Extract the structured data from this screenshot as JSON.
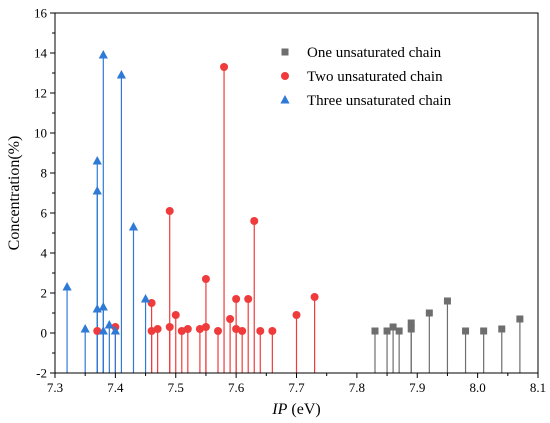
{
  "chart_data": {
    "type": "scatter",
    "style": "stem",
    "title": "",
    "xlabel_italic": "IP",
    "xlabel_unit": " (eV)",
    "ylabel": "Concentration(%)",
    "xlim": [
      7.3,
      8.1
    ],
    "ylim": [
      -2,
      16
    ],
    "baseline": -2,
    "xticks": [
      7.3,
      7.4,
      7.5,
      7.6,
      7.7,
      7.8,
      7.9,
      8.0,
      8.1
    ],
    "yticks": [
      -2,
      0,
      2,
      4,
      6,
      8,
      10,
      12,
      14,
      16
    ],
    "grid": false,
    "legend_position": "top-right",
    "series": [
      {
        "name": "One unsaturated chain",
        "marker": "square",
        "color": "#6e6e6e",
        "points": [
          {
            "x": 7.83,
            "y": 0.1
          },
          {
            "x": 7.85,
            "y": 0.1
          },
          {
            "x": 7.86,
            "y": 0.3
          },
          {
            "x": 7.87,
            "y": 0.1
          },
          {
            "x": 7.89,
            "y": 0.2
          },
          {
            "x": 7.89,
            "y": 0.5
          },
          {
            "x": 7.92,
            "y": 1.0
          },
          {
            "x": 7.95,
            "y": 1.6
          },
          {
            "x": 7.98,
            "y": 0.1
          },
          {
            "x": 8.01,
            "y": 0.1
          },
          {
            "x": 8.04,
            "y": 0.2
          },
          {
            "x": 8.07,
            "y": 0.7
          }
        ]
      },
      {
        "name": "Two unsaturated chain",
        "marker": "circle",
        "color": "#ef3b3b",
        "points": [
          {
            "x": 7.37,
            "y": 0.1
          },
          {
            "x": 7.4,
            "y": 0.3
          },
          {
            "x": 7.46,
            "y": 1.5
          },
          {
            "x": 7.46,
            "y": 0.1
          },
          {
            "x": 7.47,
            "y": 0.2
          },
          {
            "x": 7.49,
            "y": 6.1
          },
          {
            "x": 7.49,
            "y": 0.3
          },
          {
            "x": 7.5,
            "y": 0.9
          },
          {
            "x": 7.51,
            "y": 0.1
          },
          {
            "x": 7.52,
            "y": 0.2
          },
          {
            "x": 7.54,
            "y": 0.2
          },
          {
            "x": 7.55,
            "y": 2.7
          },
          {
            "x": 7.55,
            "y": 0.3
          },
          {
            "x": 7.57,
            "y": 0.1
          },
          {
            "x": 7.58,
            "y": 13.3
          },
          {
            "x": 7.59,
            "y": 0.7
          },
          {
            "x": 7.6,
            "y": 1.7
          },
          {
            "x": 7.6,
            "y": 0.2
          },
          {
            "x": 7.61,
            "y": 0.1
          },
          {
            "x": 7.62,
            "y": 1.7
          },
          {
            "x": 7.63,
            "y": 5.6
          },
          {
            "x": 7.64,
            "y": 0.1
          },
          {
            "x": 7.66,
            "y": 0.1
          },
          {
            "x": 7.7,
            "y": 0.9
          },
          {
            "x": 7.73,
            "y": 1.8
          }
        ]
      },
      {
        "name": "Three unsaturated chain",
        "marker": "triangle",
        "color": "#2f7ad6",
        "points": [
          {
            "x": 7.32,
            "y": 2.3
          },
          {
            "x": 7.35,
            "y": 0.2
          },
          {
            "x": 7.37,
            "y": 8.6
          },
          {
            "x": 7.37,
            "y": 7.1
          },
          {
            "x": 7.37,
            "y": 1.2
          },
          {
            "x": 7.38,
            "y": 13.9
          },
          {
            "x": 7.38,
            "y": 1.3
          },
          {
            "x": 7.38,
            "y": 0.1
          },
          {
            "x": 7.39,
            "y": 0.4
          },
          {
            "x": 7.4,
            "y": 0.1
          },
          {
            "x": 7.41,
            "y": 12.9
          },
          {
            "x": 7.43,
            "y": 5.3
          },
          {
            "x": 7.45,
            "y": 1.7
          }
        ]
      }
    ]
  }
}
